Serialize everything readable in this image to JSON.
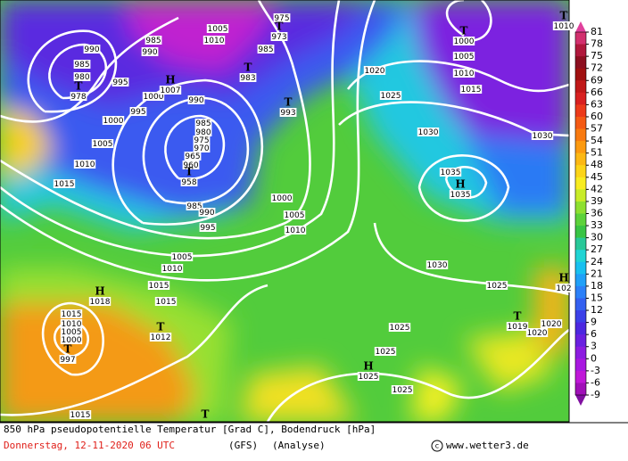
{
  "legend": {
    "ticks": [
      81,
      78,
      75,
      72,
      69,
      66,
      63,
      60,
      57,
      54,
      51,
      48,
      45,
      42,
      39,
      36,
      33,
      30,
      27,
      24,
      21,
      18,
      15,
      12,
      9,
      6,
      3,
      0,
      -3,
      -6,
      -9
    ],
    "colors": [
      "#d2306e",
      "#b0183c",
      "#8c0f20",
      "#a01010",
      "#c01818",
      "#d82020",
      "#ec3a1a",
      "#f45a14",
      "#f87a10",
      "#fc9a10",
      "#fcb814",
      "#fcd418",
      "#f8ec20",
      "#c8ec28",
      "#8ee030",
      "#5cd23a",
      "#38c444",
      "#28c898",
      "#20d4d4",
      "#18c0f0",
      "#20a0f8",
      "#2c80f8",
      "#3460f0",
      "#3c40e8",
      "#4c28e0",
      "#6a20e0",
      "#8c1ce0",
      "#a818e0",
      "#c018d8",
      "#a010b8"
    ],
    "top_color": "#e0409c",
    "bottom_color": "#8010a0"
  },
  "isobar_labels": [
    "990",
    "985",
    "980",
    "995",
    "1000",
    "990",
    "995",
    "1000",
    "1005",
    "1010",
    "1015",
    "985",
    "980",
    "975",
    "970",
    "965",
    "960",
    "985",
    "990",
    "995",
    "1000",
    "1005",
    "1010",
    "1005",
    "1010",
    "1015",
    "1005",
    "1010",
    "985",
    "1020",
    "1025",
    "1030",
    "1030",
    "1005",
    "1010",
    "1015",
    "1035",
    "1030",
    "1025",
    "1020",
    "1020",
    "1025",
    "1025",
    "1025",
    "1015",
    "1015",
    "1010",
    "1005",
    "1000",
    "1015",
    "975",
    "985",
    "990"
  ],
  "pressure_centers": [
    {
      "symbol": "T",
      "pressure": "978"
    },
    {
      "symbol": "H",
      "pressure": "1007"
    },
    {
      "symbol": "T",
      "pressure": "958"
    },
    {
      "symbol": "T",
      "pressure": "973"
    },
    {
      "symbol": "T",
      "pressure": "983"
    },
    {
      "symbol": "T",
      "pressure": "993"
    },
    {
      "symbol": "T",
      "pressure": "1000"
    },
    {
      "symbol": "T",
      "pressure": "1010"
    },
    {
      "symbol": "H",
      "pressure": "1035"
    },
    {
      "symbol": "H",
      "pressure": "102"
    },
    {
      "symbol": "T",
      "pressure": "1019"
    },
    {
      "symbol": "H",
      "pressure": "1025"
    },
    {
      "symbol": "H",
      "pressure": "1018"
    },
    {
      "symbol": "T",
      "pressure": "1012"
    },
    {
      "symbol": "T",
      "pressure": "997"
    },
    {
      "symbol": "T",
      "pressure": ""
    }
  ],
  "footer": {
    "title": "850 hPa pseudopotentielle Temperatur [Grad C], Bodendruck [hPa]",
    "date": "Donnerstag, 12-11-2020 06 UTC",
    "model": "(GFS)",
    "run": "(Analyse)",
    "copyright": "www.wetter3.de"
  }
}
